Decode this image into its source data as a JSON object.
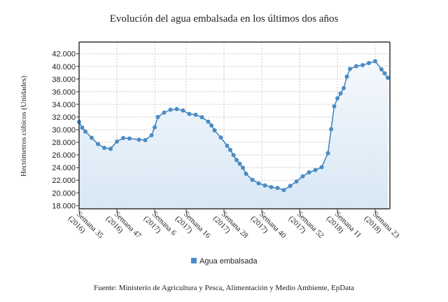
{
  "chart_data": {
    "type": "area",
    "title": "Evolución del agua embalsada en los últimos dos años",
    "ylabel": "Hectómetros cúbicos (Unidades)",
    "xlabel": "",
    "source": "Fuente: Ministerio de Agricultura y Pesca, Alimentación y Medio Ambiente, EpData",
    "ylim": [
      18000,
      42000
    ],
    "y_ticks": [
      "18.000",
      "20.000",
      "22.000",
      "24.000",
      "26.000",
      "28.000",
      "30.000",
      "32.000",
      "34.000",
      "36.000",
      "38.000",
      "40.000",
      "42.000"
    ],
    "x_ticks": [
      {
        "week": 35,
        "year": 2016,
        "line1": "Semana 35",
        "line2": "(2016)"
      },
      {
        "week": 47,
        "year": 2016,
        "line1": "Semana 47",
        "line2": "(2016)"
      },
      {
        "week": 6,
        "year": 2017,
        "line1": "Semana 6",
        "line2": "(2017)"
      },
      {
        "week": 16,
        "year": 2017,
        "line1": "Semana 16",
        "line2": "(2017)"
      },
      {
        "week": 28,
        "year": 2017,
        "line1": "Semana 28",
        "line2": "(2017)"
      },
      {
        "week": 40,
        "year": 2017,
        "line1": "Semana 40",
        "line2": "(2017)"
      },
      {
        "week": 52,
        "year": 2017,
        "line1": "Semana 52",
        "line2": "(2017)"
      },
      {
        "week": 11,
        "year": 2018,
        "line1": "Semana 11",
        "line2": "(2018)"
      },
      {
        "week": 23,
        "year": 2018,
        "line1": "Semana 23",
        "line2": "(2018)"
      }
    ],
    "grid": true,
    "legend_position": "bottom",
    "series": [
      {
        "name": "Agua embalsada",
        "color": "#4a8cc6",
        "points": [
          [
            2016,
            35,
            31220
          ],
          [
            2016,
            36,
            30300
          ],
          [
            2016,
            37,
            29700
          ],
          [
            2016,
            39,
            28710
          ],
          [
            2016,
            41,
            27710
          ],
          [
            2016,
            43,
            27120
          ],
          [
            2016,
            45,
            26970
          ],
          [
            2016,
            47,
            28120
          ],
          [
            2016,
            49,
            28670
          ],
          [
            2016,
            51,
            28600
          ],
          [
            2017,
            1,
            28410
          ],
          [
            2017,
            3,
            28340
          ],
          [
            2017,
            5,
            29115
          ],
          [
            2017,
            6,
            30370
          ],
          [
            2017,
            7,
            32000
          ],
          [
            2017,
            9,
            32700
          ],
          [
            2017,
            11,
            33140
          ],
          [
            2017,
            13,
            33250
          ],
          [
            2017,
            15,
            33030
          ],
          [
            2017,
            17,
            32475
          ],
          [
            2017,
            19,
            32360
          ],
          [
            2017,
            21,
            31960
          ],
          [
            2017,
            23,
            31260
          ],
          [
            2017,
            24,
            30670
          ],
          [
            2017,
            25,
            29890
          ],
          [
            2017,
            27,
            28750
          ],
          [
            2017,
            29,
            27450
          ],
          [
            2017,
            30,
            26790
          ],
          [
            2017,
            31,
            25980
          ],
          [
            2017,
            32,
            25200
          ],
          [
            2017,
            33,
            24610
          ],
          [
            2017,
            34,
            23980
          ],
          [
            2017,
            35,
            23020
          ],
          [
            2017,
            37,
            22060
          ],
          [
            2017,
            39,
            21510
          ],
          [
            2017,
            41,
            21180
          ],
          [
            2017,
            43,
            20920
          ],
          [
            2017,
            45,
            20770
          ],
          [
            2017,
            47,
            20440
          ],
          [
            2017,
            49,
            21100
          ],
          [
            2017,
            51,
            21800
          ],
          [
            2018,
            0,
            22620
          ],
          [
            2018,
            2,
            23240
          ],
          [
            2018,
            4,
            23610
          ],
          [
            2018,
            6,
            24060
          ],
          [
            2018,
            8,
            26270
          ],
          [
            2018,
            9,
            30070
          ],
          [
            2018,
            10,
            33690
          ],
          [
            2018,
            11,
            34950
          ],
          [
            2018,
            12,
            35720
          ],
          [
            2018,
            13,
            36570
          ],
          [
            2018,
            14,
            38380
          ],
          [
            2018,
            15,
            39600
          ],
          [
            2018,
            17,
            40040
          ],
          [
            2018,
            19,
            40190
          ],
          [
            2018,
            21,
            40520
          ],
          [
            2018,
            23,
            40820
          ],
          [
            2018,
            25,
            39530
          ],
          [
            2018,
            26,
            38900
          ],
          [
            2018,
            27,
            38200
          ]
        ]
      }
    ]
  }
}
